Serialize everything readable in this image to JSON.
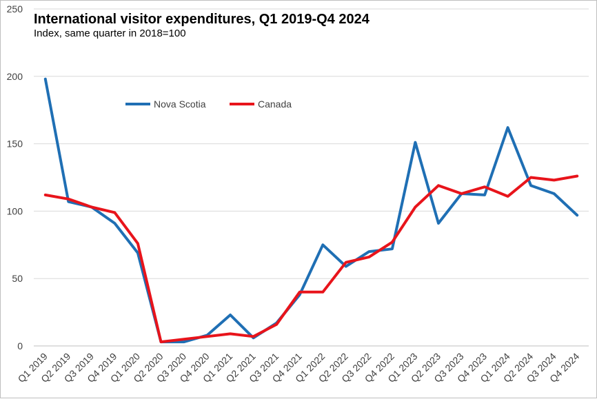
{
  "chart_data": {
    "type": "line",
    "title": "International visitor expenditures, Q1 2019-Q4 2024",
    "subtitle": "Index, same quarter in 2018=100",
    "xlabel": "",
    "ylabel": "",
    "ylim": [
      0,
      250
    ],
    "yticks": [
      0,
      50,
      100,
      150,
      200,
      250
    ],
    "grid": true,
    "legend_position": "upper-left inside plot",
    "categories": [
      "Q1 2019",
      "Q2 2019",
      "Q3 2019",
      "Q4 2019",
      "Q1 2020",
      "Q2 2020",
      "Q3 2020",
      "Q4 2020",
      "Q1 2021",
      "Q2 2021",
      "Q3 2021",
      "Q4 2021",
      "Q1 2022",
      "Q2 2022",
      "Q3 2022",
      "Q4 2022",
      "Q1 2023",
      "Q2 2023",
      "Q3 2023",
      "Q4 2023",
      "Q1 2024",
      "Q2 2024",
      "Q3 2024",
      "Q4 2024"
    ],
    "series": [
      {
        "name": "Nova Scotia",
        "color": "#1f6fb4",
        "values": [
          198,
          107,
          103,
          91,
          69,
          3,
          3,
          8,
          23,
          6,
          17,
          38,
          75,
          59,
          70,
          72,
          151,
          91,
          113,
          112,
          162,
          119,
          113,
          97
        ]
      },
      {
        "name": "Canada",
        "color": "#e8141b",
        "values": [
          112,
          109,
          103,
          99,
          76,
          3,
          5,
          7,
          9,
          7,
          16,
          40,
          40,
          62,
          66,
          77,
          103,
          119,
          113,
          118,
          111,
          125,
          123,
          126
        ]
      }
    ]
  }
}
